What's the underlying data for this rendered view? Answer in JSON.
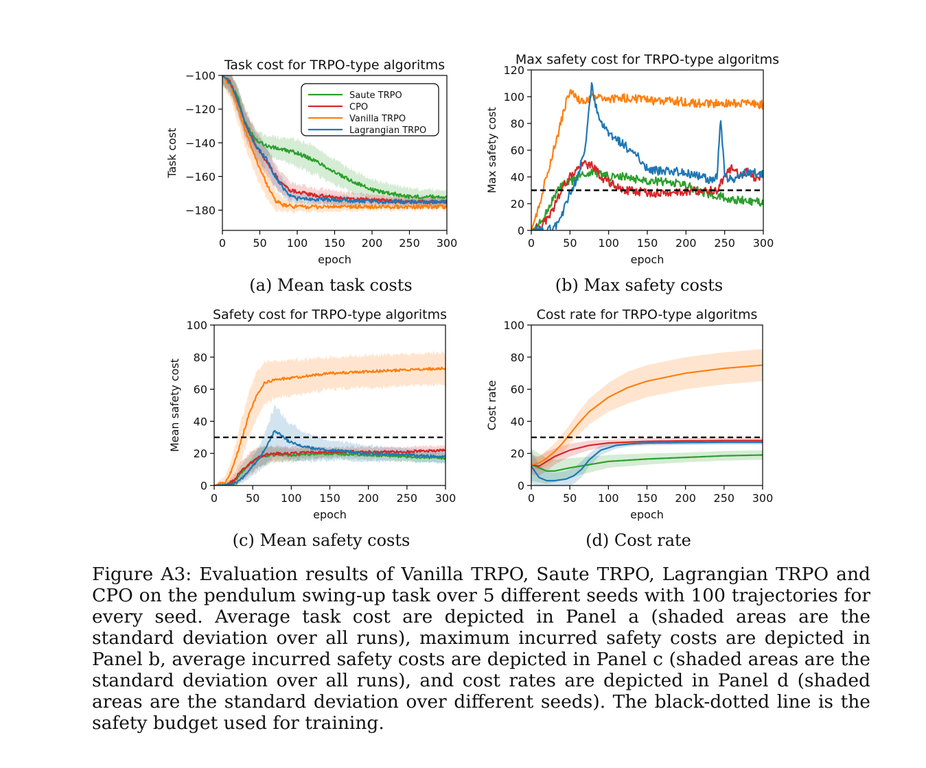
{
  "colors": {
    "saute": "#2ca02c",
    "cpo": "#d62728",
    "vanilla": "#ff7f0e",
    "lagrangian": "#1f77b4",
    "budget": "#000000"
  },
  "legend": [
    "Saute TRPO",
    "CPO",
    "Vanilla TRPO",
    "Lagrangian TRPO"
  ],
  "subcaptions": {
    "a": "(a) Mean task costs",
    "b": "(b) Max safety costs",
    "c": "(c) Mean safety costs",
    "d": "(d) Cost rate"
  },
  "figure_caption": "Figure A3: Evaluation results of Vanilla TRPO, Saute TRPO, Lagrangian TRPO and CPO on the pendulum swing-up task over 5 different seeds with 100 trajectories for every seed. Average task cost are depicted in Panel a (shaded areas are the standard deviation over all runs), maximum incurred safety costs are depicted in Panel b, average incurred safety costs are depicted in Panel c (shaded areas are the standard deviation over all runs), and cost rates are depicted in Panel d (shaded areas are the standard deviation over different seeds). The black-dotted line is the safety budget used for training.",
  "chart_data": [
    {
      "id": "a",
      "type": "line",
      "title": "Task cost for TRPO-type algoritms",
      "xlabel": "epoch",
      "ylabel": "Task cost",
      "xlim": [
        0,
        300
      ],
      "ylim": [
        -192,
        -100
      ],
      "xticks": [
        0,
        50,
        100,
        150,
        200,
        250,
        300
      ],
      "yticks": [
        -100,
        -120,
        -140,
        -160,
        -180
      ],
      "legend_position": "top-right",
      "shaded": true,
      "series": [
        {
          "name": "Saute TRPO",
          "color": "#2ca02c",
          "x": [
            0,
            10,
            20,
            30,
            45,
            60,
            80,
            100,
            130,
            160,
            200,
            250,
            300
          ],
          "y": [
            -100,
            -104,
            -112,
            -128,
            -138,
            -142,
            -144,
            -146,
            -152,
            -160,
            -168,
            -172,
            -172
          ],
          "std": [
            6,
            6,
            6,
            6,
            6,
            6,
            7,
            8,
            8,
            7,
            6,
            5,
            4
          ]
        },
        {
          "name": "CPO",
          "color": "#d62728",
          "x": [
            0,
            10,
            20,
            30,
            45,
            60,
            75,
            90,
            120,
            160,
            200,
            250,
            300
          ],
          "y": [
            -100,
            -104,
            -115,
            -128,
            -142,
            -152,
            -162,
            -168,
            -171,
            -173,
            -174,
            -175,
            -175
          ],
          "std": [
            5,
            6,
            8,
            9,
            9,
            8,
            7,
            5,
            4,
            4,
            3,
            3,
            3
          ]
        },
        {
          "name": "Vanilla TRPO",
          "color": "#ff7f0e",
          "x": [
            0,
            10,
            20,
            30,
            45,
            60,
            70,
            80,
            100,
            150,
            200,
            250,
            300
          ],
          "y": [
            -100,
            -106,
            -118,
            -132,
            -150,
            -165,
            -174,
            -177,
            -178,
            -178,
            -178,
            -178,
            -178
          ],
          "std": [
            6,
            7,
            9,
            10,
            10,
            8,
            6,
            4,
            3,
            3,
            2,
            2,
            2
          ]
        },
        {
          "name": "Lagrangian TRPO",
          "color": "#1f77b4",
          "x": [
            0,
            10,
            20,
            30,
            45,
            60,
            70,
            80,
            90,
            100,
            150,
            200,
            250,
            300
          ],
          "y": [
            -100,
            -104,
            -114,
            -128,
            -142,
            -150,
            -160,
            -166,
            -171,
            -173,
            -174,
            -175,
            -175,
            -175
          ],
          "std": [
            5,
            6,
            7,
            8,
            7,
            7,
            6,
            5,
            4,
            3,
            3,
            2,
            2,
            2
          ]
        }
      ]
    },
    {
      "id": "b",
      "type": "line",
      "title": "Max safety cost for TRPO-type algoritms",
      "xlabel": "epoch",
      "ylabel": "Max safety cost",
      "xlim": [
        0,
        300
      ],
      "ylim": [
        0,
        120
      ],
      "budget": 30,
      "xticks": [
        0,
        50,
        100,
        150,
        200,
        250,
        300
      ],
      "yticks": [
        0,
        20,
        40,
        60,
        80,
        100,
        120
      ],
      "shaded": false,
      "series": [
        {
          "name": "Saute TRPO",
          "color": "#2ca02c",
          "x": [
            0,
            10,
            20,
            30,
            40,
            50,
            60,
            70,
            80,
            90,
            100,
            120,
            140,
            160,
            180,
            200,
            220,
            240,
            260,
            280,
            300
          ],
          "y": [
            0,
            4,
            14,
            26,
            34,
            36,
            40,
            42,
            44,
            42,
            40,
            40,
            38,
            37,
            36,
            34,
            28,
            26,
            23,
            22,
            21
          ]
        },
        {
          "name": "CPO",
          "color": "#d62728",
          "x": [
            0,
            10,
            20,
            30,
            40,
            50,
            60,
            70,
            80,
            90,
            100,
            120,
            140,
            160,
            180,
            200,
            220,
            240,
            250,
            260,
            270,
            280,
            290,
            300
          ],
          "y": [
            0,
            2,
            8,
            18,
            32,
            40,
            46,
            50,
            48,
            40,
            36,
            30,
            29,
            28,
            28,
            29,
            30,
            30,
            40,
            48,
            40,
            44,
            38,
            40
          ]
        },
        {
          "name": "Vanilla TRPO",
          "color": "#ff7f0e",
          "x": [
            0,
            10,
            20,
            30,
            40,
            45,
            50,
            60,
            70,
            80,
            100,
            120,
            140,
            160,
            180,
            200,
            220,
            240,
            260,
            280,
            300
          ],
          "y": [
            0,
            18,
            42,
            62,
            84,
            96,
            104,
            98,
            96,
            100,
            98,
            99,
            98,
            97,
            97,
            96,
            95,
            95,
            95,
            95,
            94
          ]
        },
        {
          "name": "Lagrangian TRPO",
          "color": "#1f77b4",
          "x": [
            0,
            20,
            30,
            40,
            50,
            60,
            70,
            78,
            85,
            90,
            100,
            110,
            120,
            130,
            140,
            150,
            170,
            190,
            210,
            230,
            240,
            245,
            250,
            260,
            280,
            300
          ],
          "y": [
            0,
            0,
            2,
            12,
            28,
            40,
            62,
            110,
            88,
            80,
            72,
            68,
            64,
            58,
            54,
            46,
            44,
            44,
            42,
            38,
            40,
            84,
            40,
            38,
            44,
            42
          ]
        }
      ]
    },
    {
      "id": "c",
      "type": "line",
      "title": "Safety cost for TRPO-type algoritms",
      "xlabel": "epoch",
      "ylabel": "Mean safety cost",
      "xlim": [
        0,
        300
      ],
      "ylim": [
        0,
        100
      ],
      "budget": 30,
      "xticks": [
        0,
        50,
        100,
        150,
        200,
        250,
        300
      ],
      "yticks": [
        0,
        20,
        40,
        60,
        80,
        100
      ],
      "shaded": true,
      "series": [
        {
          "name": "Saute TRPO",
          "color": "#2ca02c",
          "x": [
            0,
            15,
            25,
            35,
            50,
            60,
            75,
            100,
            150,
            200,
            250,
            300
          ],
          "y": [
            0,
            0,
            2,
            8,
            15,
            18,
            19,
            19,
            20,
            19,
            18,
            17
          ],
          "std": [
            0,
            1,
            3,
            5,
            6,
            6,
            5,
            4,
            3,
            3,
            3,
            3
          ]
        },
        {
          "name": "CPO",
          "color": "#d62728",
          "x": [
            0,
            15,
            25,
            35,
            50,
            60,
            75,
            100,
            150,
            200,
            250,
            300
          ],
          "y": [
            0,
            0,
            3,
            9,
            15,
            18,
            20,
            20,
            21,
            21,
            21,
            22
          ],
          "std": [
            0,
            1,
            4,
            6,
            7,
            6,
            5,
            4,
            3,
            3,
            3,
            3
          ]
        },
        {
          "name": "Vanilla TRPO",
          "color": "#ff7f0e",
          "x": [
            0,
            15,
            25,
            35,
            45,
            55,
            65,
            80,
            100,
            150,
            200,
            250,
            300
          ],
          "y": [
            0,
            2,
            12,
            28,
            44,
            56,
            64,
            66,
            67,
            70,
            71,
            72,
            73
          ],
          "std": [
            0,
            4,
            8,
            12,
            14,
            14,
            13,
            11,
            11,
            10,
            10,
            10,
            10
          ]
        },
        {
          "name": "Lagrangian TRPO",
          "color": "#1f77b4",
          "x": [
            0,
            20,
            30,
            40,
            50,
            60,
            70,
            78,
            85,
            95,
            110,
            130,
            150,
            200,
            250,
            300
          ],
          "y": [
            0,
            0,
            2,
            6,
            12,
            18,
            26,
            34,
            32,
            28,
            25,
            23,
            22,
            20,
            19,
            18
          ],
          "std": [
            0,
            1,
            2,
            4,
            6,
            8,
            12,
            16,
            14,
            12,
            10,
            8,
            6,
            5,
            4,
            4
          ]
        }
      ]
    },
    {
      "id": "d",
      "type": "line",
      "title": "Cost rate for TRPO-type algoritms",
      "xlabel": "epoch",
      "ylabel": "Cost rate",
      "xlim": [
        0,
        300
      ],
      "ylim": [
        0,
        100
      ],
      "budget": 30,
      "xticks": [
        0,
        50,
        100,
        150,
        200,
        250,
        300
      ],
      "yticks": [
        0,
        20,
        40,
        60,
        80,
        100
      ],
      "shaded": true,
      "series": [
        {
          "name": "Saute TRPO",
          "color": "#2ca02c",
          "x": [
            0,
            10,
            20,
            30,
            50,
            75,
            100,
            150,
            200,
            250,
            300
          ],
          "y": [
            13,
            11,
            9,
            9,
            11,
            13,
            15,
            16.5,
            17.5,
            18.5,
            19
          ],
          "std": [
            10,
            9,
            8,
            7,
            6,
            5,
            4,
            3.5,
            3,
            3,
            3
          ]
        },
        {
          "name": "CPO",
          "color": "#d62728",
          "x": [
            0,
            10,
            20,
            30,
            50,
            75,
            100,
            150,
            200,
            250,
            300
          ],
          "y": [
            13,
            12,
            15,
            18,
            22,
            25,
            26.5,
            27.5,
            27.8,
            28,
            28
          ],
          "std": [
            6,
            6,
            6,
            5,
            4,
            3,
            2,
            2,
            2,
            2,
            2
          ]
        },
        {
          "name": "Vanilla TRPO",
          "color": "#ff7f0e",
          "x": [
            0,
            10,
            20,
            30,
            40,
            50,
            60,
            75,
            100,
            125,
            150,
            200,
            250,
            300
          ],
          "y": [
            13,
            14,
            17,
            21,
            26,
            32,
            38,
            46,
            55,
            61,
            65,
            70,
            73,
            75
          ],
          "std": [
            4,
            4,
            5,
            5,
            6,
            6,
            7,
            8,
            9,
            10,
            10,
            10,
            10,
            10
          ]
        },
        {
          "name": "Lagrangian TRPO",
          "color": "#1f77b4",
          "x": [
            0,
            10,
            20,
            30,
            45,
            55,
            65,
            75,
            90,
            110,
            130,
            150,
            200,
            250,
            300
          ],
          "y": [
            12,
            5,
            3,
            3,
            4,
            6,
            10,
            16,
            22,
            25,
            26,
            26.5,
            26.8,
            27,
            27
          ],
          "std": [
            10,
            8,
            6,
            5,
            5,
            5,
            5,
            4,
            3,
            2,
            1.5,
            1.5,
            1.5,
            1.5,
            1.5
          ]
        }
      ]
    }
  ]
}
